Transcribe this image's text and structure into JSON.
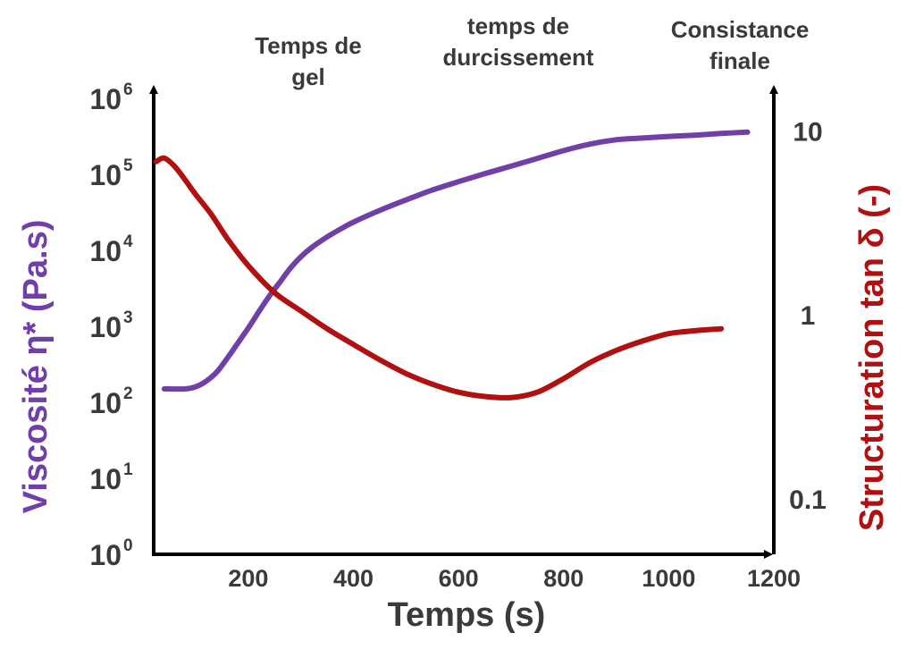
{
  "chart_data": {
    "type": "line",
    "xlabel": "Temps (s)",
    "xlim": [
      20,
      1200
    ],
    "x_ticks": [
      "200",
      "400",
      "600",
      "800",
      "1000",
      "1200"
    ],
    "y_left": {
      "label": "Viscosité η* (Pa.s)",
      "scale": "log",
      "ylim": [
        1,
        1000000
      ],
      "tick_bases": [
        "10",
        "10",
        "10",
        "10",
        "10",
        "10",
        "10"
      ],
      "tick_exponents": [
        "0",
        "1",
        "2",
        "3",
        "4",
        "5",
        "6"
      ],
      "color": "#7040a8"
    },
    "y_right": {
      "label": "Structuration tan δ (-)",
      "scale": "log",
      "ylim": [
        0.05,
        15
      ],
      "ticks": [
        "0.1",
        "1",
        "10"
      ],
      "color": "#b01010"
    },
    "annotations": [
      {
        "lines": [
          "Temps de",
          "gel"
        ]
      },
      {
        "lines": [
          "temps de",
          "durcissement"
        ]
      },
      {
        "lines": [
          "Consistance",
          "finale"
        ]
      }
    ],
    "series": [
      {
        "axis": "left",
        "color": "#7040a8",
        "points": [
          [
            40,
            150
          ],
          [
            80,
            150
          ],
          [
            100,
            160
          ],
          [
            120,
            190
          ],
          [
            140,
            250
          ],
          [
            160,
            380
          ],
          [
            180,
            600
          ],
          [
            200,
            950
          ],
          [
            220,
            1550
          ],
          [
            240,
            2500
          ],
          [
            260,
            3800
          ],
          [
            280,
            5800
          ],
          [
            300,
            8200
          ],
          [
            320,
            10800
          ],
          [
            350,
            15000
          ],
          [
            380,
            19800
          ],
          [
            400,
            23500
          ],
          [
            450,
            33500
          ],
          [
            500,
            46000
          ],
          [
            550,
            62000
          ],
          [
            600,
            80000
          ],
          [
            650,
            102000
          ],
          [
            700,
            128000
          ],
          [
            750,
            162000
          ],
          [
            800,
            205000
          ],
          [
            850,
            250000
          ],
          [
            900,
            285000
          ],
          [
            950,
            300000
          ],
          [
            1000,
            315000
          ],
          [
            1050,
            328000
          ],
          [
            1100,
            345000
          ],
          [
            1150,
            360000
          ]
        ]
      },
      {
        "axis": "right",
        "color": "#b01010",
        "points": [
          [
            25,
            6.8
          ],
          [
            40,
            7.1
          ],
          [
            60,
            6.4
          ],
          [
            80,
            5.4
          ],
          [
            100,
            4.5
          ],
          [
            130,
            3.5
          ],
          [
            160,
            2.6
          ],
          [
            200,
            1.85
          ],
          [
            250,
            1.32
          ],
          [
            300,
            1.05
          ],
          [
            350,
            0.84
          ],
          [
            400,
            0.69
          ],
          [
            450,
            0.57
          ],
          [
            500,
            0.48
          ],
          [
            550,
            0.42
          ],
          [
            600,
            0.38
          ],
          [
            650,
            0.36
          ],
          [
            700,
            0.355
          ],
          [
            750,
            0.38
          ],
          [
            800,
            0.45
          ],
          [
            850,
            0.55
          ],
          [
            900,
            0.64
          ],
          [
            950,
            0.72
          ],
          [
            1000,
            0.79
          ],
          [
            1050,
            0.82
          ],
          [
            1100,
            0.84
          ]
        ]
      }
    ]
  }
}
